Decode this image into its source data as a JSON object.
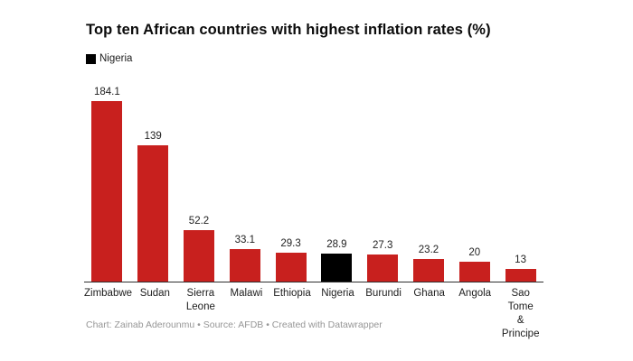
{
  "title": "Top ten African countries with highest inflation rates (%)",
  "legend": {
    "label": "Nigeria",
    "swatch_color": "#000000"
  },
  "footer": "Chart: Zainab Aderounmu • Source: AFDB • Created with Datawrapper",
  "chart_data": {
    "type": "bar",
    "title": "Top ten African countries with highest inflation rates (%)",
    "categories": [
      "Zimbabwe",
      "Sudan",
      "Sierra\nLeone",
      "Malawi",
      "Ethiopia",
      "Nigeria",
      "Burundi",
      "Ghana",
      "Angola",
      "Sao Tome\n& Principe"
    ],
    "values": [
      184.1,
      139,
      52.2,
      33.1,
      29.3,
      28.9,
      27.3,
      23.2,
      20,
      13
    ],
    "value_labels": [
      "184.1",
      "139",
      "52.2",
      "33.1",
      "29.3",
      "28.9",
      "27.3",
      "23.2",
      "20",
      "13"
    ],
    "highlight_index": 5,
    "highlight_label": "Nigeria",
    "bar_color": "#c8201e",
    "highlight_color": "#000000",
    "xlabel": "",
    "ylabel": "",
    "ylim": [
      0,
      184.1
    ],
    "grid": false,
    "value_labels_position": "above-bars",
    "legend_position": "top-left"
  }
}
